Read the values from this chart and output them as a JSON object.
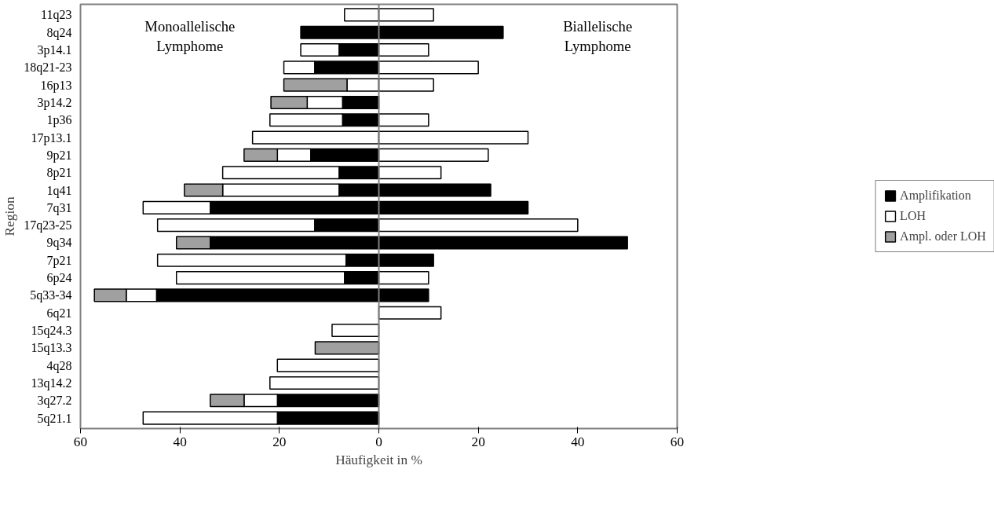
{
  "chart_data": {
    "type": "bar",
    "orientation": "horizontal",
    "stacked": true,
    "xlabel": "Häufigkeit in %",
    "ylabel": "Region",
    "categories": [
      "11q23",
      "8q24",
      "3p14.1",
      "18q21-23",
      "16p13",
      "3p14.2",
      "1p36",
      "17p13.1",
      "9p21",
      "8p21",
      "1q41",
      "7q31",
      "17q23-25",
      "9q34",
      "7p21",
      "6p24",
      "5q33-34",
      "6q21",
      "15q24.3",
      "15q13.3",
      "4q28",
      "13q14.2",
      "3q27.2",
      "5q21.1"
    ],
    "series": [
      {
        "name": "Amplifikation",
        "color": "#000000",
        "values": [
          null,
          -15.7,
          -8,
          -12.9,
          null,
          -7.3,
          -7.3,
          null,
          -13.7,
          -8,
          -8,
          -33.9,
          -12.9,
          -33.9,
          -6.6,
          -6.9,
          -44.7,
          null,
          null,
          null,
          null,
          null,
          -20.4,
          -20.4
        ]
      },
      {
        "name": "LOH",
        "color": "#ffffff",
        "values": [
          -6.9,
          null,
          -7.7,
          -6.2,
          -6.4,
          -7.1,
          -14.6,
          -25.4,
          -6.7,
          -23.4,
          -23.4,
          -13.5,
          -31.6,
          null,
          -37.9,
          -33.8,
          -6.1,
          null,
          -9.4,
          null,
          -20.4,
          -21.9,
          -6.7,
          -27
        ]
      },
      {
        "name": "Ampl. oder LOH",
        "color": "#a0a0a0",
        "values": [
          null,
          null,
          null,
          null,
          -12.7,
          -7.3,
          null,
          null,
          -6.7,
          null,
          -7.7,
          null,
          null,
          -6.8,
          null,
          null,
          -6.4,
          null,
          null,
          -12.8,
          null,
          null,
          -6.8,
          null
        ]
      },
      {
        "color": "#000000",
        "values": [
          null,
          25,
          null,
          null,
          null,
          null,
          null,
          null,
          null,
          null,
          22.5,
          30,
          null,
          50,
          11,
          null,
          10,
          null,
          null,
          null,
          null,
          null,
          null,
          null
        ]
      },
      {
        "color": "#ffffff",
        "values": [
          11,
          null,
          10,
          20,
          11,
          null,
          10,
          30,
          22,
          12.5,
          null,
          null,
          40,
          null,
          null,
          10,
          null,
          12.5,
          null,
          null,
          null,
          null,
          null,
          null
        ]
      }
    ],
    "xlim": [
      -60,
      60
    ],
    "xticks": [
      {
        "value": -60,
        "label": "60"
      },
      {
        "value": -40,
        "label": "40"
      },
      {
        "value": -20,
        "label": "20"
      },
      0,
      20,
      40,
      60
    ],
    "annotations": [
      {
        "text": "Monoallelische\nLymphome"
      },
      {
        "text": "Biallelische\nLymphome"
      }
    ],
    "ref_lines": [
      {
        "axis": "x",
        "value": 0,
        "color": "#808080"
      }
    ],
    "grid": false,
    "legend": "right"
  }
}
